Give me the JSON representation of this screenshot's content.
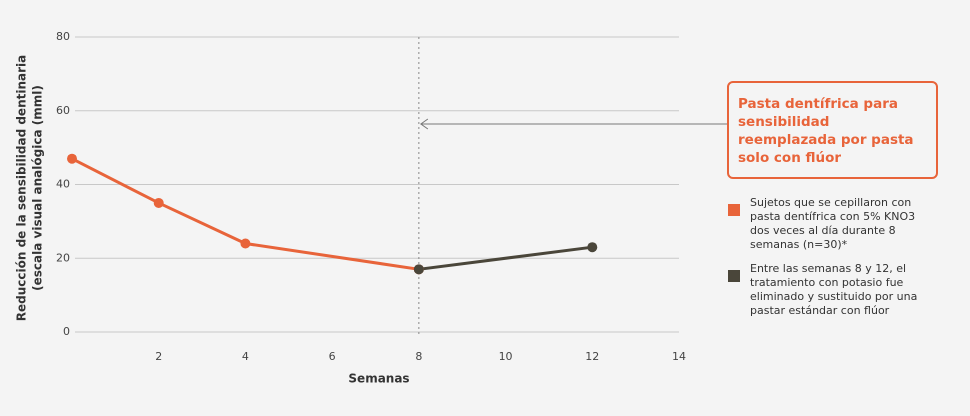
{
  "chart_data": {
    "type": "line",
    "y_label": [
      "Reducción de la sensibilidad dentinaria",
      "(escala visual analógica (mml)"
    ],
    "x_label": "Semanas",
    "xlim": [
      0,
      14
    ],
    "xticks": [
      2,
      4,
      6,
      8,
      10,
      12,
      14
    ],
    "ylim": [
      0,
      80
    ],
    "yticks": [
      0,
      20,
      40,
      60,
      80
    ],
    "grid": true,
    "marker_line_x": 8,
    "annotation": "Pasta dentífrica para sensibilidad reemplazada por pasta solo con flúor",
    "series": [
      {
        "name": "Sujetos que se cepillaron con pasta dentífrica con 5% KNO3 dos veces al día durante  8 semanas (n=30)*",
        "color": "#e8643a",
        "x": [
          0,
          2,
          4,
          8
        ],
        "values": [
          47,
          35,
          24,
          17
        ]
      },
      {
        "name": "Entre las semanas 8 y 12, el tratamiento con potasio fue eliminado y sustituido por una pastar estándar con flúor",
        "color": "#4a463a",
        "x": [
          8,
          12
        ],
        "values": [
          17,
          23
        ]
      }
    ]
  }
}
